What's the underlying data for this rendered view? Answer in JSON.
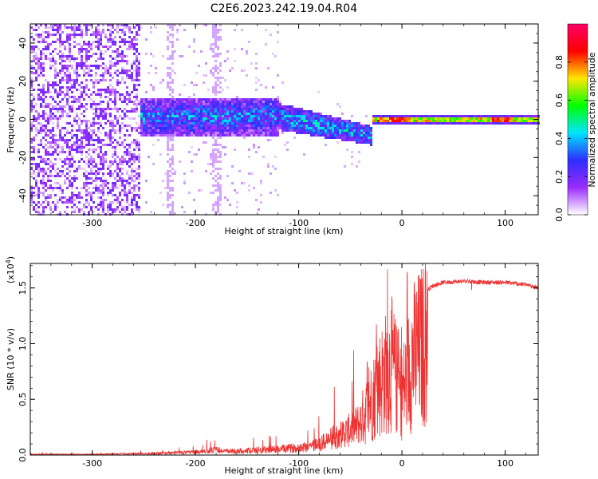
{
  "chart_data": [
    {
      "type": "heatmap",
      "title": "C2E6.2023.242.19.04.R04",
      "xlabel": "Height of straight line (km)",
      "ylabel": "Frequency (Hz)",
      "xlim": [
        -360,
        132
      ],
      "ylim": [
        -50,
        50
      ],
      "x_ticks": [
        "-300",
        "-200",
        "-100",
        "0",
        "100"
      ],
      "y_ticks": [
        "-40",
        "-20",
        "0",
        "20",
        "40"
      ],
      "colorbar": {
        "label": "Normalized spectral amplitude",
        "range": [
          0,
          1
        ],
        "ticks": [
          "0.0",
          "0.2",
          "0.4",
          "0.6",
          "0.8"
        ],
        "colors": [
          "#ffffff",
          "#9b2cff",
          "#2d2dff",
          "#00e5ff",
          "#00ff00",
          "#ffe600",
          "#ff0000",
          "#ff0066"
        ]
      },
      "regions": [
        {
          "from": -360,
          "to": -255,
          "f_spread": 50,
          "level": 0.15,
          "note": "broadband noise"
        },
        {
          "from": -255,
          "to": -120,
          "f_center": 2,
          "f_width": 10,
          "level": 0.3
        },
        {
          "from": -120,
          "to": -30,
          "f_center_start": 2,
          "f_center_end": -8,
          "f_width": 6,
          "level": 0.4
        },
        {
          "from": -30,
          "to": 132,
          "f_center": 0.5,
          "f_width": 1.5,
          "level": 0.75
        }
      ]
    },
    {
      "type": "line",
      "xlabel": "Height of straight line (km)",
      "ylabel": "SNR (10 * v/v)",
      "multiplier_label": "(x10",
      "multiplier_exp": "4",
      "xlim": [
        -360,
        132
      ],
      "ylim": [
        0,
        1.72
      ],
      "x_ticks": [
        "-300",
        "-200",
        "-100",
        "0",
        "100"
      ],
      "y_ticks": [
        "0.0",
        "0.5",
        "1.0",
        "1.5"
      ],
      "color": "#ee3333",
      "x": [
        -360,
        -300,
        -250,
        -200,
        -180,
        -170,
        -150,
        -120,
        -100,
        -80,
        -70,
        -60,
        -50,
        -40,
        -30,
        -20,
        -10,
        0,
        10,
        20,
        30,
        40,
        60,
        80,
        100,
        120,
        132
      ],
      "y": [
        0.01,
        0.01,
        0.02,
        0.04,
        0.07,
        0.05,
        0.06,
        0.08,
        0.1,
        0.15,
        0.22,
        0.28,
        0.35,
        0.45,
        0.7,
        1.0,
        1.2,
        0.8,
        1.3,
        1.45,
        1.52,
        1.55,
        1.56,
        1.55,
        1.55,
        1.53,
        1.5
      ],
      "spike_max": 1.72
    }
  ]
}
